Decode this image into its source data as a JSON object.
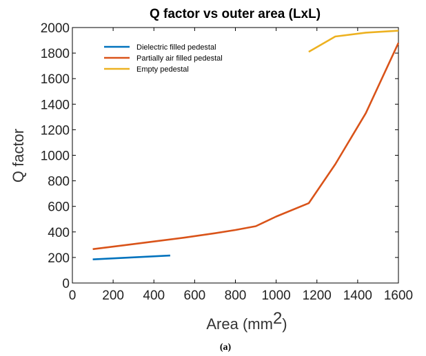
{
  "chart_data": {
    "type": "line",
    "title": "Q factor vs outer area (LxL)",
    "xlabel_main": "Area (mm",
    "xlabel_sup": "2",
    "xlabel_close": ")",
    "ylabel": "Q factor",
    "xlim": [
      0,
      1600
    ],
    "ylim": [
      0,
      2000
    ],
    "xticks": [
      0,
      200,
      400,
      600,
      800,
      1000,
      1200,
      1400,
      1600
    ],
    "yticks": [
      0,
      200,
      400,
      600,
      800,
      1000,
      1200,
      1400,
      1600,
      1800,
      2000
    ],
    "grid": false,
    "legend_position": "top-left",
    "series": [
      {
        "name": "Dielectric filled pedestal",
        "color": "#0072BD",
        "x": [
          100,
          480
        ],
        "y": [
          185,
          215
        ]
      },
      {
        "name": "Partially air filled pedestal",
        "color": "#D95319",
        "x": [
          100,
          250,
          400,
          550,
          700,
          800,
          900,
          1000,
          1160,
          1290,
          1440,
          1600
        ],
        "y": [
          265,
          295,
          325,
          355,
          390,
          415,
          445,
          520,
          625,
          930,
          1330,
          1880
        ]
      },
      {
        "name": "Empty pedestal",
        "color": "#EDB120",
        "x": [
          1160,
          1290,
          1440,
          1600
        ],
        "y": [
          1810,
          1930,
          1960,
          1975
        ]
      }
    ]
  },
  "caption": "(a)"
}
